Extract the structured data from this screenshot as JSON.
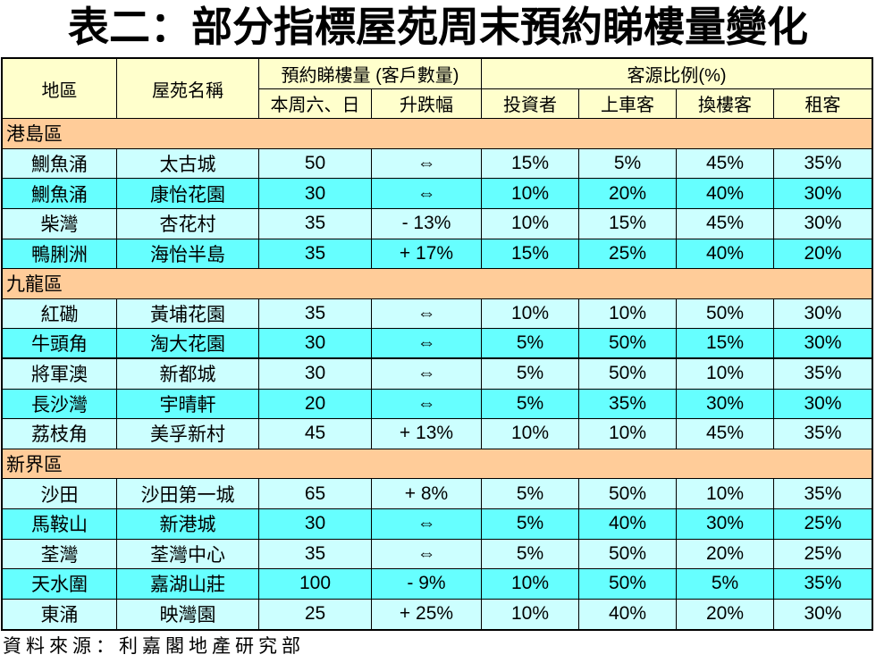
{
  "colors": {
    "header_bg": "#FFFFCC",
    "region_bg": "#FFCC99",
    "row_light": "#CCFFFF",
    "row_bright": "#66FFFF",
    "border": "#000000",
    "text": "#000000"
  },
  "chart_data": {
    "type": "table",
    "title": "表二：部分指標屋苑周末預約睇樓量變化",
    "columns": {
      "district": "地區",
      "estate": "屋苑名稱",
      "viewings_group": "預約睇樓量 (客戶數量)",
      "viewings": "本周六、日",
      "change": "升跌幅",
      "share_group": "客源比例(%)",
      "investor": "投資者",
      "first_time_buyer": "上車客",
      "upgrader": "換樓客",
      "tenant": "租客"
    },
    "regions": [
      {
        "name": "港島區",
        "rows": [
          {
            "district": "鰂魚涌",
            "estate": "太古城",
            "viewings": 50,
            "change": "⇔",
            "investor": 15,
            "first_time_buyer": 5,
            "upgrader": 45,
            "tenant": 35
          },
          {
            "district": "鰂魚涌",
            "estate": "康怡花園",
            "viewings": 30,
            "change": "⇔",
            "investor": 10,
            "first_time_buyer": 20,
            "upgrader": 40,
            "tenant": 30
          },
          {
            "district": "柴灣",
            "estate": "杏花村",
            "viewings": 35,
            "change": "- 13%",
            "investor": 10,
            "first_time_buyer": 15,
            "upgrader": 45,
            "tenant": 30
          },
          {
            "district": "鴨脷洲",
            "estate": "海怡半島",
            "viewings": 35,
            "change": "+ 17%",
            "investor": 15,
            "first_time_buyer": 25,
            "upgrader": 40,
            "tenant": 20
          }
        ]
      },
      {
        "name": "九龍區",
        "rows": [
          {
            "district": "紅磡",
            "estate": "黃埔花園",
            "viewings": 35,
            "change": "⇔",
            "investor": 10,
            "first_time_buyer": 10,
            "upgrader": 50,
            "tenant": 30
          },
          {
            "district": "牛頭角",
            "estate": "淘大花園",
            "viewings": 30,
            "change": "⇔",
            "investor": 5,
            "first_time_buyer": 50,
            "upgrader": 15,
            "tenant": 30
          },
          {
            "district": "將軍澳",
            "estate": "新都城",
            "viewings": 30,
            "change": "⇔",
            "investor": 5,
            "first_time_buyer": 50,
            "upgrader": 10,
            "tenant": 35
          },
          {
            "district": "長沙灣",
            "estate": "宇晴軒",
            "viewings": 20,
            "change": "⇔",
            "investor": 5,
            "first_time_buyer": 35,
            "upgrader": 30,
            "tenant": 30
          },
          {
            "district": "荔枝角",
            "estate": "美孚新村",
            "viewings": 45,
            "change": "+ 13%",
            "investor": 10,
            "first_time_buyer": 10,
            "upgrader": 45,
            "tenant": 35
          }
        ]
      },
      {
        "name": "新界區",
        "rows": [
          {
            "district": "沙田",
            "estate": "沙田第一城",
            "viewings": 65,
            "change": "+ 8%",
            "investor": 5,
            "first_time_buyer": 50,
            "upgrader": 10,
            "tenant": 35
          },
          {
            "district": "馬鞍山",
            "estate": "新港城",
            "viewings": 30,
            "change": "⇔",
            "investor": 5,
            "first_time_buyer": 40,
            "upgrader": 30,
            "tenant": 25
          },
          {
            "district": "荃灣",
            "estate": "荃灣中心",
            "viewings": 35,
            "change": "⇔",
            "investor": 5,
            "first_time_buyer": 50,
            "upgrader": 20,
            "tenant": 25
          },
          {
            "district": "天水圍",
            "estate": "嘉湖山莊",
            "viewings": 100,
            "change": "- 9%",
            "investor": 10,
            "first_time_buyer": 50,
            "upgrader": 5,
            "tenant": 35
          },
          {
            "district": "東涌",
            "estate": "映灣園",
            "viewings": 25,
            "change": "+ 25%",
            "investor": 10,
            "first_time_buyer": 40,
            "upgrader": 20,
            "tenant": 30
          }
        ]
      }
    ],
    "source": "資料來源：利嘉閣地產研究部"
  }
}
